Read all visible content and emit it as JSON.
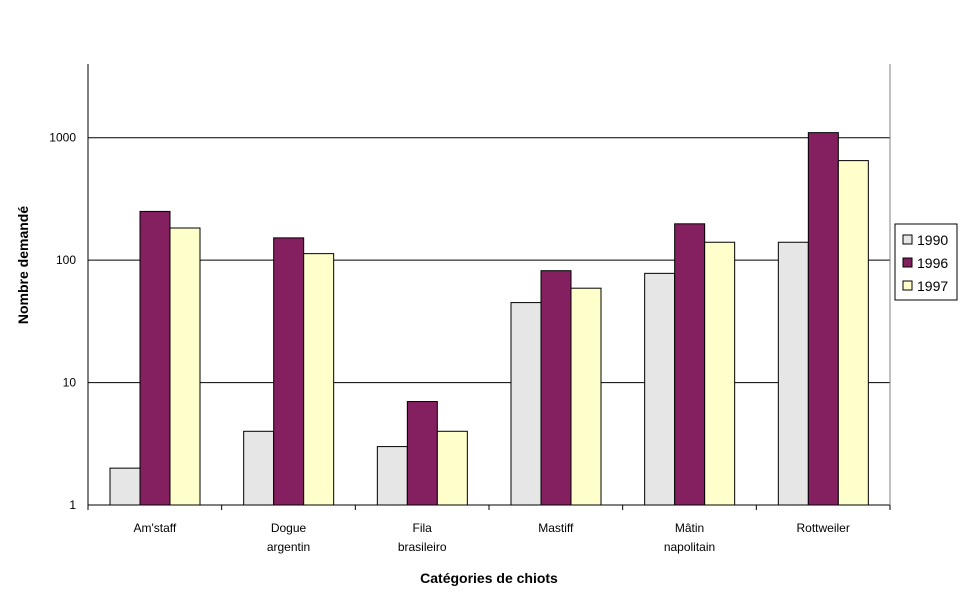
{
  "chart_data": {
    "type": "bar",
    "xlabel": "Catégories  de  chiots",
    "ylabel": "Nombre demandé",
    "yscale": "log",
    "ylim": [
      1,
      4000
    ],
    "grid": true,
    "legend_position": "right",
    "categories": [
      [
        "Am'staff"
      ],
      [
        "Dogue",
        "argentin"
      ],
      [
        "Fila",
        "brasileiro"
      ],
      [
        "Mastiff"
      ],
      [
        "Mâtin",
        "napolitain"
      ],
      [
        "Rottweiler"
      ]
    ],
    "y_ticks": [
      {
        "value": 1,
        "label": "1"
      },
      {
        "value": 10,
        "label": "10"
      },
      {
        "value": 100,
        "label": "100"
      },
      {
        "value": 1000,
        "label": "1000"
      }
    ],
    "series": [
      {
        "name": "1990",
        "color": "#E6E6E6",
        "values": [
          2,
          4,
          3,
          45,
          78,
          140
        ]
      },
      {
        "name": "1996",
        "color": "#84205F",
        "values": [
          250,
          152,
          7,
          82,
          198,
          1100
        ]
      },
      {
        "name": "1997",
        "color": "#FFFFCC",
        "values": [
          183,
          113,
          4,
          59,
          140,
          650
        ]
      }
    ]
  }
}
